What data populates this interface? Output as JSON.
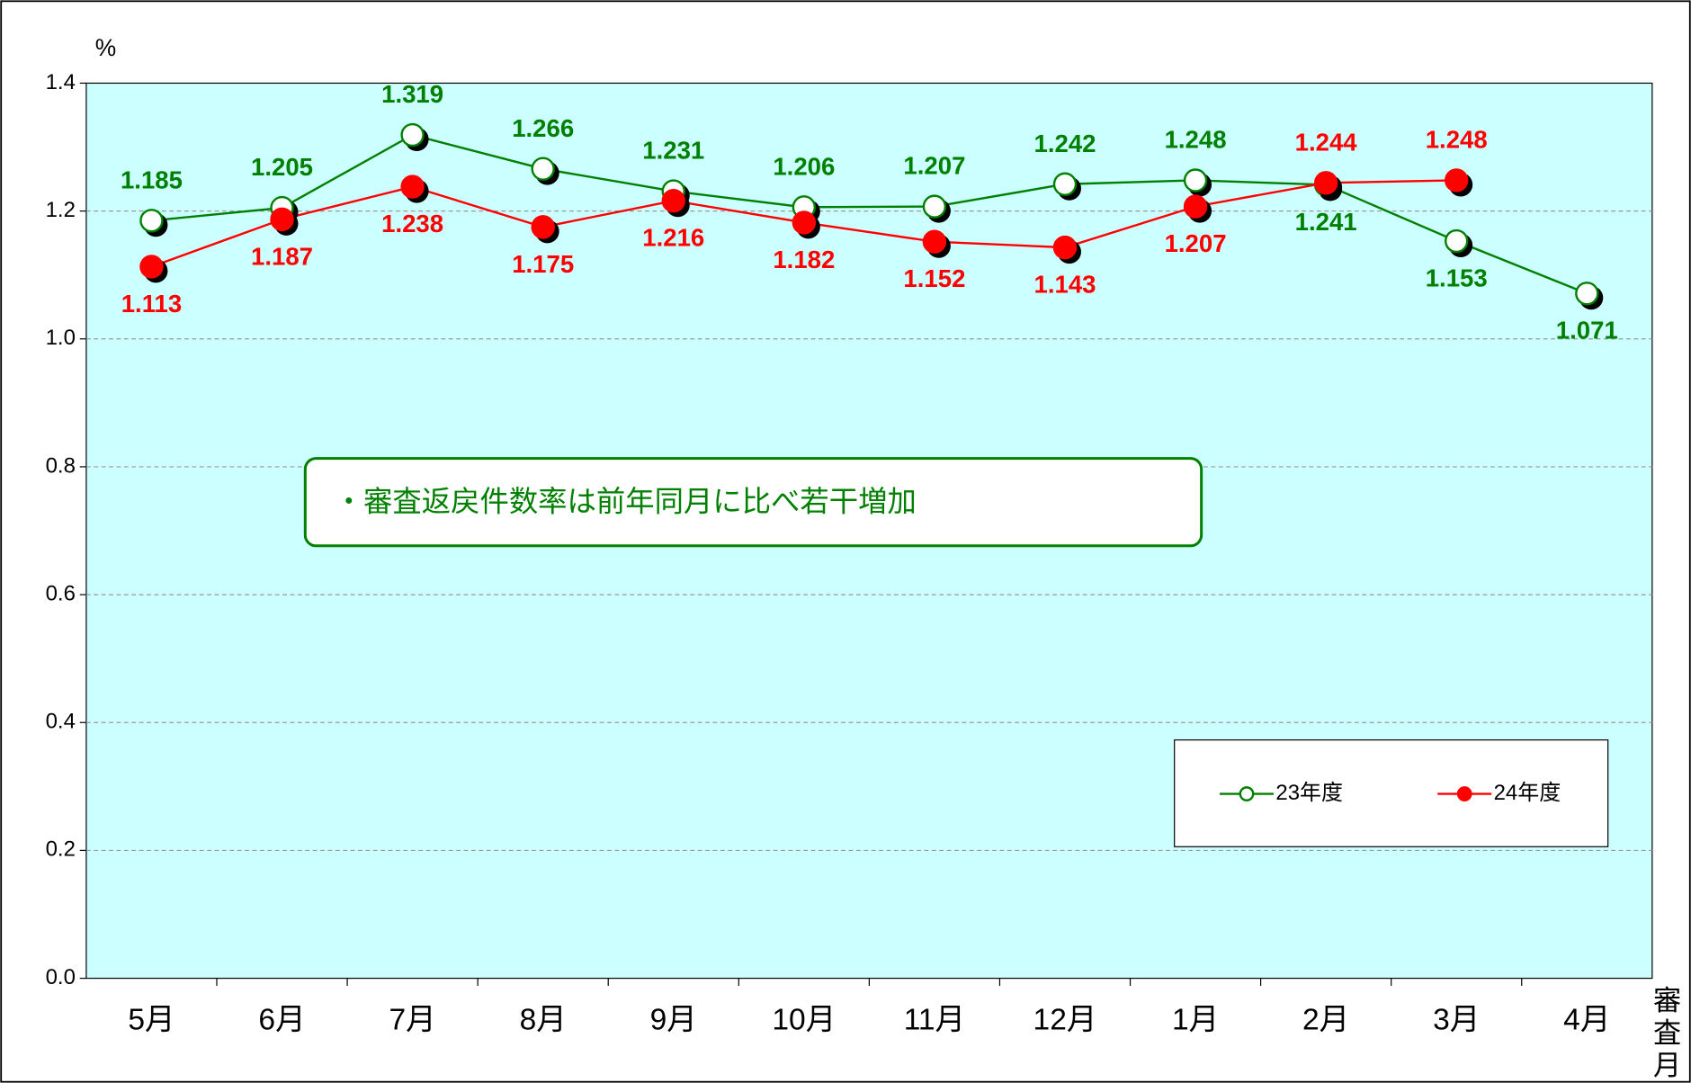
{
  "chart_data": {
    "type": "line",
    "y_axis_label": "%",
    "x_axis_label": "審査月",
    "annotation": "・審査返戻件数率は前年同月に比べ若干増加",
    "categories": [
      "5月",
      "6月",
      "7月",
      "8月",
      "9月",
      "10月",
      "11月",
      "12月",
      "1月",
      "2月",
      "3月",
      "4月"
    ],
    "series": [
      {
        "name": "23年度",
        "color": "#008000",
        "values": [
          1.185,
          1.205,
          1.319,
          1.266,
          1.231,
          1.206,
          1.207,
          1.242,
          1.248,
          1.241,
          1.153,
          1.071
        ]
      },
      {
        "name": "24年度",
        "color": "#ff0000",
        "values": [
          1.113,
          1.187,
          1.238,
          1.175,
          1.216,
          1.182,
          1.152,
          1.143,
          1.207,
          1.244,
          1.248,
          null
        ]
      }
    ],
    "ylim": [
      0,
      1.4
    ],
    "yticks": [
      {
        "value": 0,
        "label": "0.0"
      },
      0.2,
      0.4,
      0.6,
      0.8,
      {
        "value": 1,
        "label": "1.0"
      },
      1.2,
      1.4
    ],
    "grid": true,
    "legend": "lower right"
  }
}
